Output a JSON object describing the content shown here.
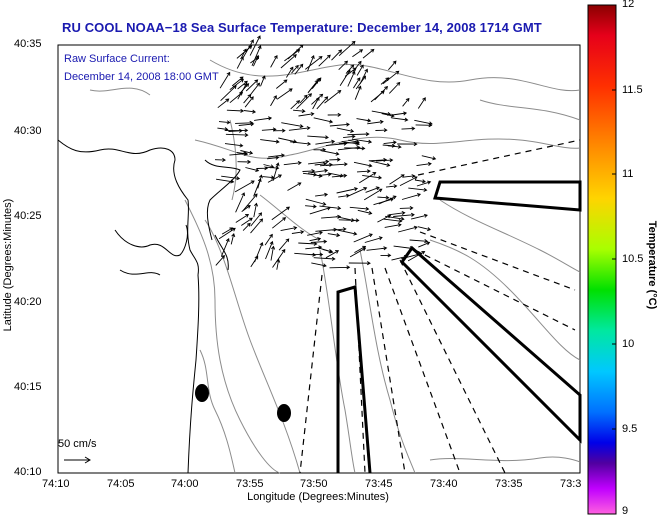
{
  "title": "RU COOL  NOAA−18  Sea Surface Temperature:  December 14, 2008 1714 GMT",
  "annotation": {
    "line1": "Raw Surface Current:",
    "line2": "December 14, 2008 18:00 GMT"
  },
  "scale_label": "50 cm/s",
  "axes": {
    "xlabel": "Longitude (Degrees:Minutes)",
    "ylabel": "Latitude (Degrees:Minutes)",
    "xticks": [
      "74:10",
      "74:05",
      "74:00",
      "73:55",
      "73:50",
      "73:45",
      "73:40",
      "73:35",
      "73:3"
    ],
    "yticks": [
      "40:35",
      "40:30",
      "40:25",
      "40:20",
      "40:15",
      "40:10"
    ]
  },
  "colorbar": {
    "label": "Temperature (°C)",
    "ticks": [
      "12",
      "11.5",
      "11",
      "10.5",
      "10",
      "9.5",
      "9"
    ]
  },
  "colors": {
    "title": "#1a1ab0",
    "annotation": "#1a1ab0"
  }
}
